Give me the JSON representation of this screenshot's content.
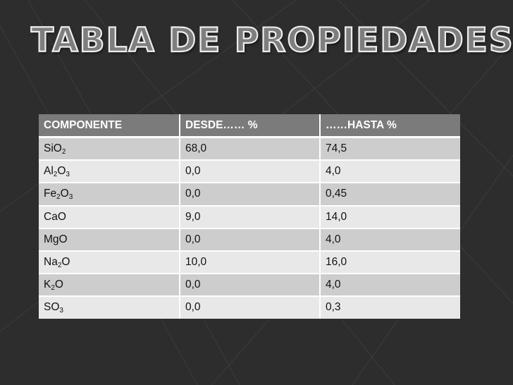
{
  "slide": {
    "title": "TABLA DE PROPIEDADES"
  },
  "table": {
    "headers": [
      "COMPONENTE",
      "DESDE…… %",
      "……HASTA %"
    ],
    "rows": [
      {
        "component": [
          [
            "Si",
            ""
          ],
          [
            "O",
            "2"
          ]
        ],
        "desde": "68,0",
        "hasta": "74,5"
      },
      {
        "component": [
          [
            "Al",
            "2"
          ],
          [
            "O",
            "3"
          ]
        ],
        "desde": "0,0",
        "hasta": "4,0"
      },
      {
        "component": [
          [
            "Fe",
            "2"
          ],
          [
            "O",
            "3"
          ]
        ],
        "desde": "0,0",
        "hasta": "0,45"
      },
      {
        "component": [
          [
            "CaO",
            ""
          ]
        ],
        "desde": "9,0",
        "hasta": "14,0"
      },
      {
        "component": [
          [
            "MgO",
            ""
          ]
        ],
        "desde": "0,0",
        "hasta": "4,0"
      },
      {
        "component": [
          [
            "Na",
            "2"
          ],
          [
            "O",
            ""
          ]
        ],
        "desde": "10,0",
        "hasta": "16,0"
      },
      {
        "component": [
          [
            "K",
            "2"
          ],
          [
            "O",
            ""
          ]
        ],
        "desde": "0,0",
        "hasta": "4,0"
      },
      {
        "component": [
          [
            "S",
            ""
          ],
          [
            "O",
            "3"
          ]
        ],
        "desde": "0,0",
        "hasta": "0,3"
      }
    ]
  },
  "colors": {
    "background": "#2d2d2d",
    "header_fill": "#7b7b7b",
    "row_dark": "#cdcdcd",
    "row_light": "#e8e8e8"
  }
}
